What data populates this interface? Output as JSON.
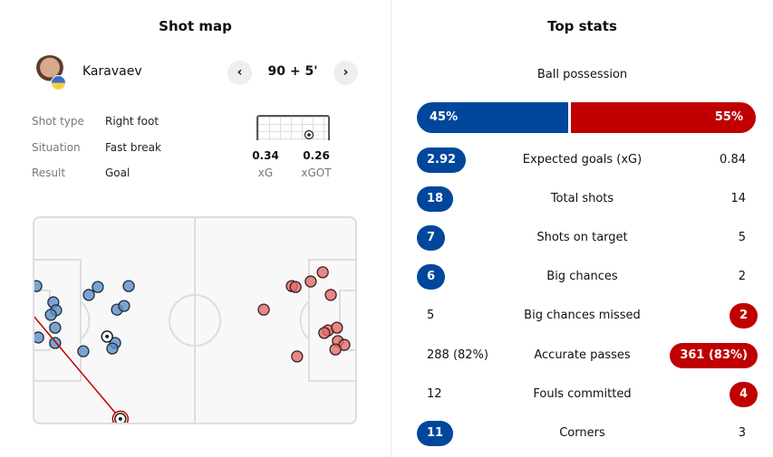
{
  "colors": {
    "home": "#00479c",
    "away": "#c00000"
  },
  "shot_map": {
    "title": "Shot map",
    "player": "Karavaev",
    "minute": "90 + 5'",
    "prev_icon": "chevron-left-icon",
    "next_icon": "chevron-right-icon",
    "details": [
      {
        "label": "Shot type",
        "value": "Right foot"
      },
      {
        "label": "Situation",
        "value": "Fast break"
      },
      {
        "label": "Result",
        "value": "Goal"
      }
    ],
    "xg": "0.34",
    "xg_label": "xG",
    "xgot": "0.26",
    "xgot_label": "xGOT"
  },
  "chart_data": {
    "type": "scatter",
    "pitch_units": "meters (105 x 68)",
    "home_shots": [
      [
        1.2,
        22.8
      ],
      [
        6.7,
        28.1
      ],
      [
        7.6,
        30.7
      ],
      [
        5.9,
        32.2
      ],
      [
        7.3,
        36.4
      ],
      [
        1.8,
        39.6
      ],
      [
        7.3,
        41.4
      ],
      [
        18.2,
        25.7
      ],
      [
        21.1,
        23.1
      ],
      [
        31.1,
        22.8
      ],
      [
        27.3,
        30.5
      ],
      [
        29.6,
        29.3
      ],
      [
        26.7,
        41.4
      ],
      [
        25.8,
        43.2
      ],
      [
        16.4,
        44.1
      ]
    ],
    "home_goals": [
      [
        24.1,
        39.3
      ]
    ],
    "selected_shot": {
      "from": [
        28.4,
        66.2
      ],
      "to": [
        0,
        32.2
      ]
    },
    "away_shots": [
      [
        83.9,
        22.8
      ],
      [
        85.1,
        23.1
      ],
      [
        90.0,
        21.3
      ],
      [
        93.9,
        18.3
      ],
      [
        96.5,
        25.7
      ],
      [
        74.8,
        30.5
      ],
      [
        95.6,
        37.3
      ],
      [
        94.4,
        38.1
      ],
      [
        98.5,
        36.4
      ],
      [
        98.8,
        40.8
      ],
      [
        100.9,
        42.0
      ],
      [
        98.0,
        43.5
      ],
      [
        85.6,
        45.8
      ]
    ]
  },
  "top_stats": {
    "title": "Top stats",
    "possession": {
      "label": "Ball possession",
      "home": "45%",
      "away": "55%",
      "home_pct": 45
    },
    "rows": [
      {
        "name": "Expected goals (xG)",
        "home": "2.92",
        "away": "0.84",
        "leader": "home"
      },
      {
        "name": "Total shots",
        "home": "18",
        "away": "14",
        "leader": "home"
      },
      {
        "name": "Shots on target",
        "home": "7",
        "away": "5",
        "leader": "home"
      },
      {
        "name": "Big chances",
        "home": "6",
        "away": "2",
        "leader": "home"
      },
      {
        "name": "Big chances missed",
        "home": "5",
        "away": "2",
        "leader": "away"
      },
      {
        "name": "Accurate passes",
        "home": "288 (82%)",
        "away": "361 (83%)",
        "leader": "away"
      },
      {
        "name": "Fouls committed",
        "home": "12",
        "away": "4",
        "leader": "away"
      },
      {
        "name": "Corners",
        "home": "11",
        "away": "3",
        "leader": "home"
      }
    ]
  }
}
